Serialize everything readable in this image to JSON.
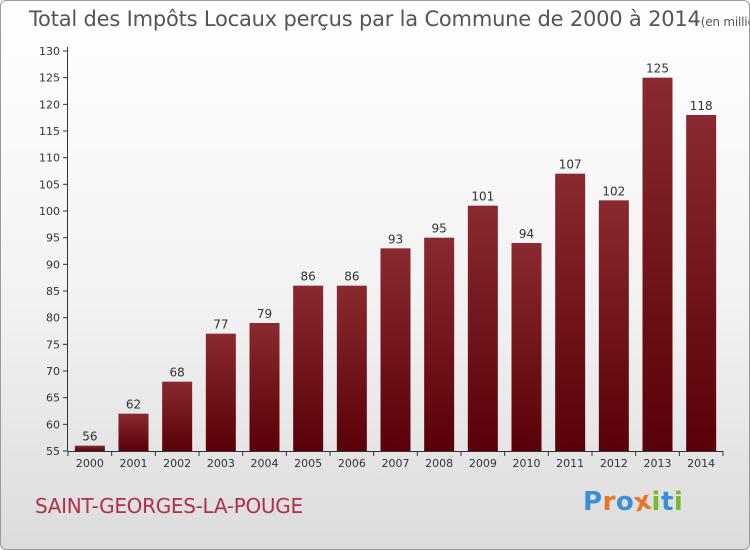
{
  "title": "Total des Impôts Locaux perçus par la Commune de 2000 à 2014",
  "title_unit": "(en milliers d'€)",
  "commune": "SAINT-GEORGES-LA-POUGE",
  "logo": {
    "letters": [
      "P",
      "r",
      "o",
      "x",
      "i",
      "t",
      "i"
    ],
    "colors": [
      "#3a8fd6",
      "#e8752a",
      "#3a8fd6",
      "#e8752a",
      "#7cb82f",
      "#3a8fd6",
      "#7cb82f"
    ]
  },
  "colors": {
    "bar_top": "#8a2a30",
    "bar_bottom": "#5a0008",
    "axis": "#333333",
    "grid": "#d0d0d0"
  },
  "chart_data": {
    "type": "bar",
    "categories": [
      "2000",
      "2001",
      "2002",
      "2003",
      "2004",
      "2005",
      "2006",
      "2007",
      "2008",
      "2009",
      "2010",
      "2011",
      "2012",
      "2013",
      "2014"
    ],
    "values": [
      56,
      62,
      68,
      77,
      79,
      86,
      86,
      93,
      95,
      101,
      94,
      107,
      102,
      125,
      118
    ],
    "value_labels": [
      "56",
      "62",
      "68",
      "77",
      "79",
      "86",
      "86",
      "93",
      "95",
      "101",
      "94",
      "107",
      "102",
      "125",
      "118"
    ],
    "yticks": [
      55,
      60,
      65,
      70,
      75,
      80,
      85,
      90,
      95,
      100,
      105,
      110,
      115,
      120,
      125,
      130
    ],
    "ytick_labels": [
      "55",
      "60",
      "65",
      "70",
      "75",
      "80",
      "85",
      "90",
      "95",
      "100",
      "105",
      "110",
      "115",
      "120",
      "125",
      "130"
    ],
    "ylim": [
      55,
      130
    ],
    "grid": false,
    "legend": "none"
  }
}
